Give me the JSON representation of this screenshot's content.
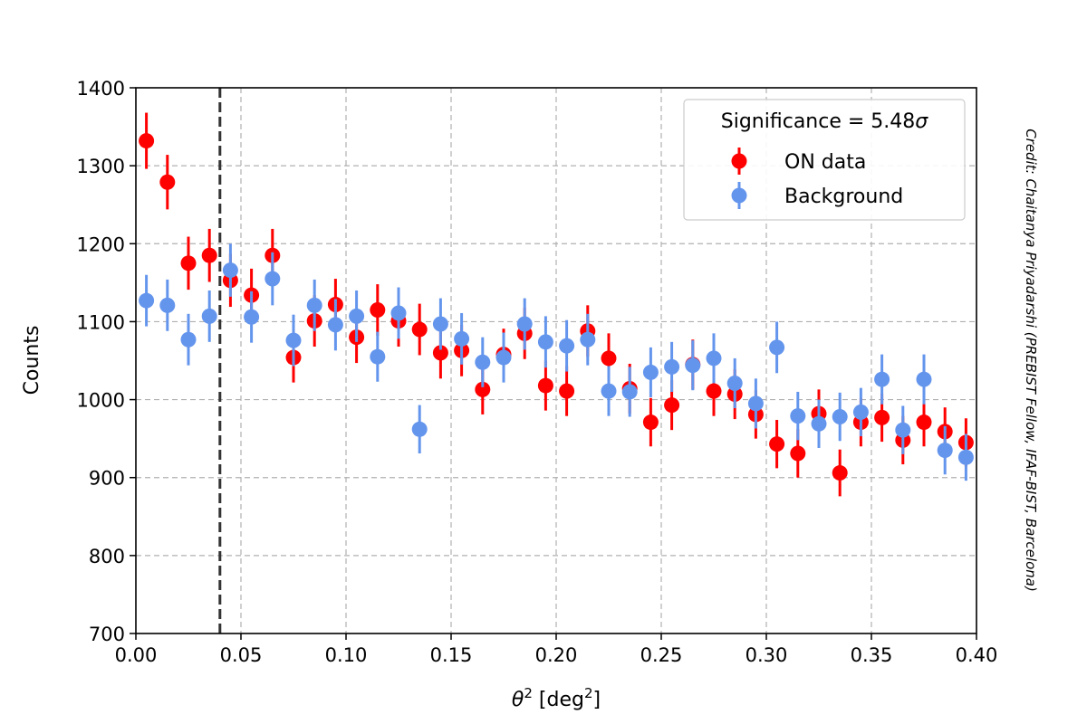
{
  "chart_data": {
    "type": "scatter",
    "xlabel_base": "θ",
    "xlabel_sup": "2",
    "xlabel_unit_open": " [deg",
    "xlabel_unit_sup": "2",
    "xlabel_unit_close": "]",
    "ylabel": "Counts",
    "xlim": [
      0.0,
      0.4
    ],
    "ylim": [
      700,
      1400
    ],
    "xticks": [
      0.0,
      0.05,
      0.1,
      0.15,
      0.2,
      0.25,
      0.3,
      0.35,
      0.4
    ],
    "xtick_labels": [
      "0.00",
      "0.05",
      "0.10",
      "0.15",
      "0.20",
      "0.25",
      "0.30",
      "0.35",
      "0.40"
    ],
    "yticks": [
      700,
      800,
      900,
      1000,
      1100,
      1200,
      1300,
      1400
    ],
    "ytick_labels": [
      "700",
      "800",
      "900",
      "1000",
      "1100",
      "1200",
      "1300",
      "1400"
    ],
    "grid": true,
    "cut_line_x": 0.04,
    "legend": {
      "title_prefix": "Significance = 5.48",
      "title_symbol": "σ",
      "placement": "top-right"
    },
    "credit": "Credit: Chaitanya Priyadarshi (PREBIST Fellow, IFAF-BIST, Barcelona)",
    "x": [
      0.005,
      0.015,
      0.025,
      0.035,
      0.045,
      0.055,
      0.065,
      0.075,
      0.085,
      0.095,
      0.105,
      0.115,
      0.125,
      0.135,
      0.145,
      0.155,
      0.165,
      0.175,
      0.185,
      0.195,
      0.205,
      0.215,
      0.225,
      0.235,
      0.245,
      0.255,
      0.265,
      0.275,
      0.285,
      0.295,
      0.305,
      0.315,
      0.325,
      0.335,
      0.345,
      0.355,
      0.365,
      0.375,
      0.385,
      0.395
    ],
    "series": [
      {
        "name": "ON data",
        "color": "#ff0000",
        "values": [
          1332,
          1279,
          1175,
          1185,
          1153,
          1134,
          1185,
          1054,
          1101,
          1122,
          1080,
          1115,
          1101,
          1090,
          1060,
          1063,
          1013,
          1058,
          1085,
          1018,
          1011,
          1088,
          1053,
          1014,
          971,
          993,
          1045,
          1011,
          1007,
          981,
          943,
          931,
          982,
          906,
          971,
          977,
          948,
          971,
          959,
          945
        ],
        "errors": [
          36,
          35,
          34,
          34,
          34,
          34,
          34,
          32,
          33,
          33,
          33,
          33,
          33,
          33,
          33,
          33,
          32,
          33,
          33,
          32,
          32,
          33,
          32,
          32,
          31,
          32,
          32,
          32,
          32,
          31,
          31,
          31,
          31,
          30,
          31,
          31,
          31,
          31,
          31,
          31
        ]
      },
      {
        "name": "Background",
        "color": "#6495ed",
        "values": [
          1127,
          1121,
          1077,
          1107,
          1166,
          1106,
          1155,
          1076,
          1121,
          1096,
          1107,
          1055,
          1111,
          962,
          1097,
          1078,
          1048,
          1054,
          1097,
          1074,
          1069,
          1077,
          1011,
          1010,
          1035,
          1042,
          1044,
          1053,
          1021,
          995,
          1067,
          979,
          969,
          978,
          984,
          1026,
          961,
          1026,
          935,
          926
        ],
        "errors": [
          33,
          33,
          33,
          33,
          34,
          33,
          34,
          33,
          33,
          33,
          33,
          32,
          33,
          31,
          33,
          33,
          32,
          32,
          33,
          33,
          33,
          33,
          32,
          32,
          32,
          32,
          32,
          32,
          32,
          32,
          33,
          31,
          31,
          31,
          31,
          32,
          31,
          32,
          31,
          30
        ]
      }
    ]
  }
}
